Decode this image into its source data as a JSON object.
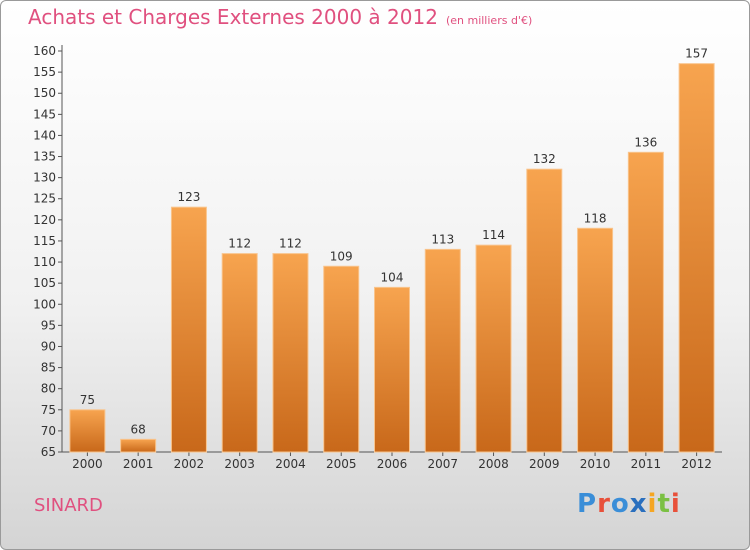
{
  "header": {
    "title": "Achats et Charges Externes 2000 à 2012",
    "subtitle": "(en milliers d'€)"
  },
  "footer": {
    "commune": "SINARD",
    "brand": "Proxiti"
  },
  "colors": {
    "title": "#e0507f",
    "bar_light": "#f7a44f",
    "bar_dark": "#c8681a"
  },
  "chart_data": {
    "type": "bar",
    "title": "Achats et Charges Externes 2000 à 2012",
    "subtitle": "(en milliers d'€)",
    "categories": [
      "2000",
      "2001",
      "2002",
      "2003",
      "2004",
      "2005",
      "2006",
      "2007",
      "2008",
      "2009",
      "2010",
      "2011",
      "2012"
    ],
    "values": [
      75,
      68,
      123,
      112,
      112,
      109,
      104,
      113,
      114,
      132,
      118,
      136,
      157
    ],
    "ylim": [
      65,
      160
    ],
    "yticks": [
      65,
      70,
      75,
      80,
      85,
      90,
      95,
      100,
      105,
      110,
      115,
      120,
      125,
      130,
      135,
      140,
      145,
      150,
      155,
      160
    ],
    "grid": false,
    "legend": "none",
    "data_labels": true
  }
}
